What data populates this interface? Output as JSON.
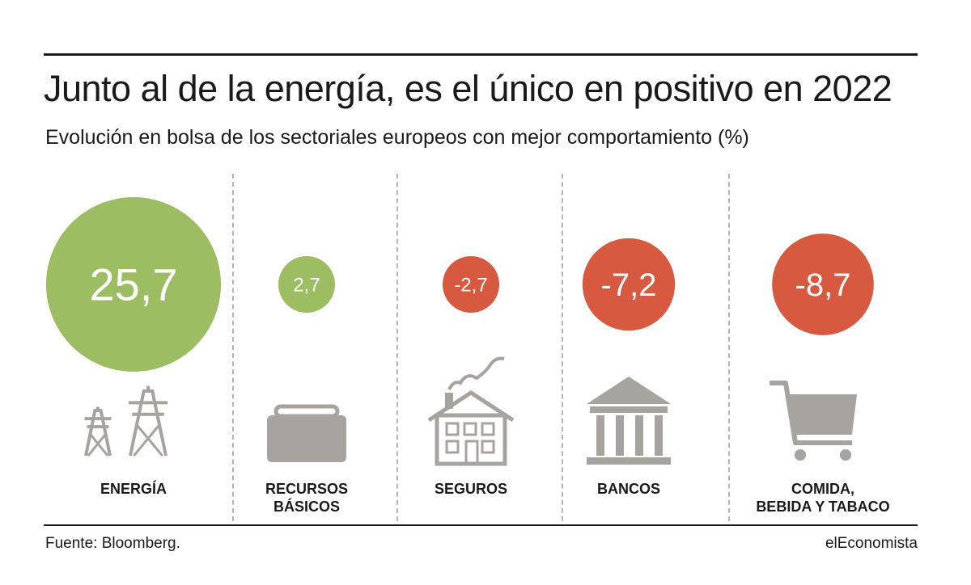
{
  "title": "Junto al de la energía, es el único en positivo en 2022",
  "subtitle": "Evolución en bolsa de los sectoriales europeos con mejor comportamiento (%)",
  "colors": {
    "positive": "#9dbd63",
    "negative": "#d75a40",
    "icon": "#a7a39e",
    "text": "#1a1a1a"
  },
  "chart_data": {
    "type": "bubble",
    "title": "Junto al de la energía, es el único en positivo en 2022",
    "subtitle": "Evolución en bolsa de los sectoriales europeos con mejor comportamiento (%)",
    "unit": "%",
    "categories": [
      {
        "label": [
          "ENERGÍA"
        ],
        "value": 25.7,
        "display": "25,7",
        "icon": "power-tower-icon"
      },
      {
        "label": [
          "RECURSOS",
          "BÁSICOS"
        ],
        "value": 2.7,
        "display": "2,7",
        "icon": "briefcase-icon"
      },
      {
        "label": [
          "SEGUROS"
        ],
        "value": -2.7,
        "display": "-2,7",
        "icon": "house-icon"
      },
      {
        "label": [
          "BANCOS"
        ],
        "value": -7.2,
        "display": "-7,2",
        "icon": "bank-icon"
      },
      {
        "label": [
          "COMIDA,",
          "BEBIDA Y TABACO"
        ],
        "value": -8.7,
        "display": "-8,7",
        "icon": "shopping-cart-icon"
      }
    ]
  },
  "footer": {
    "source": "Fuente: Bloomberg.",
    "brand": "elEconomista"
  }
}
